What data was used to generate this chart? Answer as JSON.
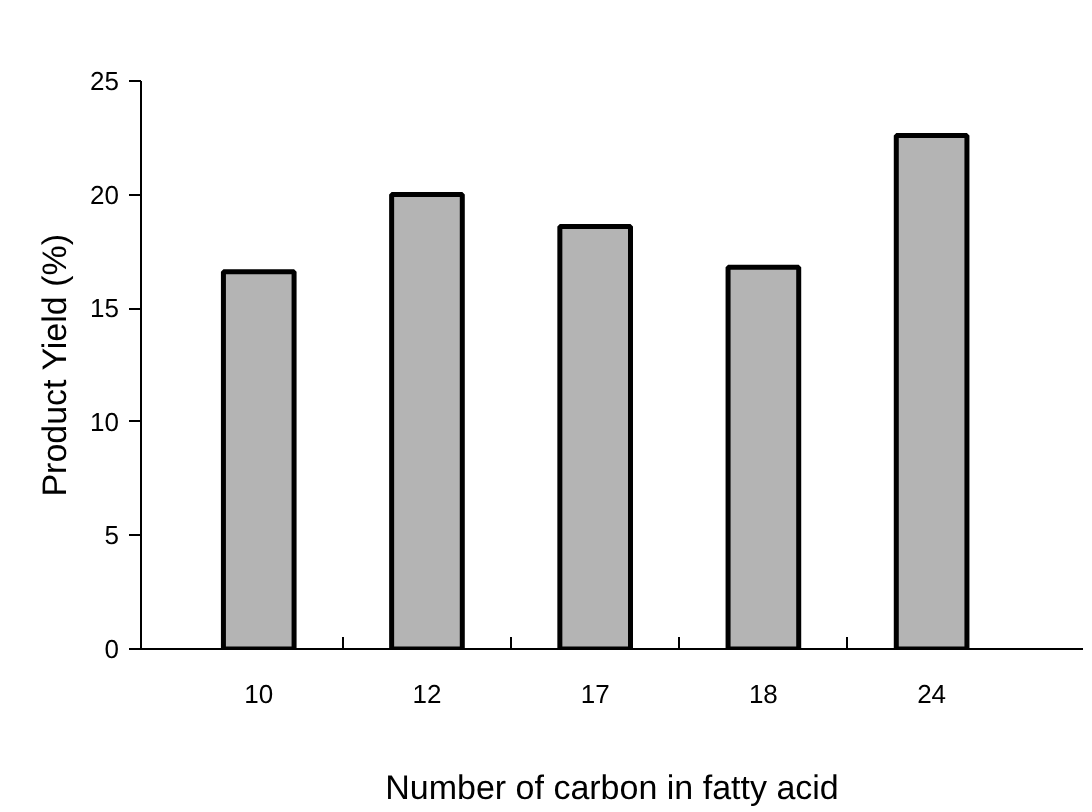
{
  "chart_data": {
    "type": "bar",
    "xlabel": "Number of carbon in fatty acid",
    "ylabel": "Product Yield (%)",
    "categories": [
      "10",
      "12",
      "17",
      "18",
      "24"
    ],
    "values": [
      16.6,
      20.0,
      18.6,
      16.8,
      22.6
    ],
    "color": "#b4b4b4",
    "ylim": [
      0,
      25
    ],
    "yticks": [
      0,
      5,
      10,
      15,
      20,
      25
    ],
    "grid": false
  }
}
